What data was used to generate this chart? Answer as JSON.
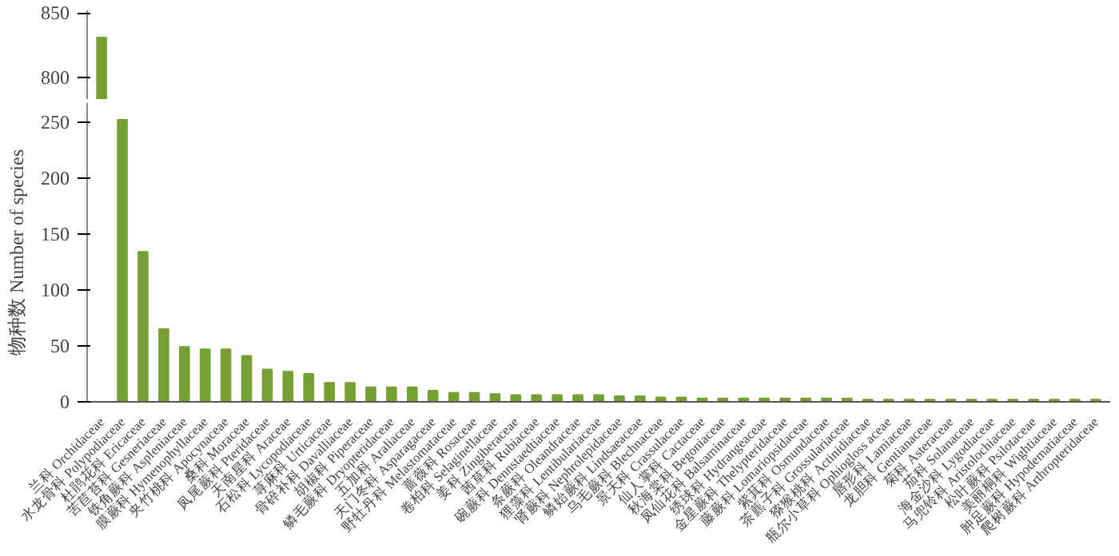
{
  "chart_data": [
    {
      "type": "bar",
      "categories": [
        null
      ],
      "values": [
        831
      ],
      "color": "#76a033",
      "ylim": [
        783,
        852
      ],
      "yticks": [
        800,
        850
      ],
      "tick_labels": "y"
    },
    {
      "type": "bar",
      "ylabel": "物种数 Number of species",
      "categories": [
        "兰科 Orchidaceae",
        "水龙骨科 Polypodiaceae",
        "杜鹃花科 Ericaceae",
        "苦苣苔科 Gesneriaceae",
        "铁角蕨科 Aspleniaceae",
        "膜蕨科 Hymenophyllaceae",
        "夹竹桃科 Apocynaceae",
        "桑科 Moraceae",
        "凤尾蕨科 Pteridaceae",
        "天南星科 Araceae",
        "石松科 Lycopodiaceae",
        "荨麻科 Urticaceae",
        "骨碎补科 Davalliaceae",
        "胡椒科 Piperaceae",
        "鳞毛蕨科 Dryopteridaceae",
        "五加科 Araliaceae",
        "天门冬科 Asparagaceae",
        "野牡丹科 Melastomataceae",
        "蔷薇科 Rosaceae",
        "卷柏科 Selaginellaceae",
        "姜科 Zingiberaceae",
        "茜草科 Rubiaceae",
        "碗蕨科 Dennstaedtiaceae",
        "条蕨科 Oleandraceae",
        "狸藻科 Lentibulariaceae",
        "肾蕨科 Nephrolepidaceae",
        "鳞始蕨科 Lindsaeaceae",
        "乌毛蕨科 Blechnaceae",
        "景天科 Crassulaceae",
        "仙人掌科 Cactaceae",
        "秋海棠科 Begoniaceae",
        "凤仙花科 Balsaminaceae",
        "绣球科 Hydrangeaceae",
        "金星蕨科 Thelypteridaceae",
        "藤蕨科 Lomariopsidaceae",
        "紫萁科 Osmundaceae",
        "茶藨子科 Grossulariaceae",
        "猕猴桃科 Actinidiaceae",
        "瓶尔小草科 Ophiogloss aceae",
        "唇形科 Lamiaceae",
        "龙胆科 Gentianaceae",
        "菊科 Asteraceae",
        "茄科 Solanaceae",
        "海金沙科 Lygodiaceae",
        "马兜铃科 Aristolochiaceae",
        "松叶蕨科 Psilotaceae",
        "美丽桐科 Wightiaceae",
        "肿足蕨科 Hypodematiaceae",
        "爬树蕨科 Arthropteridaceae"
      ],
      "values": [
        null,
        252,
        134,
        65,
        49,
        47,
        47,
        41,
        29,
        27,
        25,
        17,
        17,
        13,
        13,
        13,
        10,
        8,
        8,
        7,
        6,
        6,
        6,
        6,
        6,
        5,
        5,
        4,
        4,
        3,
        3,
        3,
        3,
        3,
        3,
        3,
        3,
        2,
        2,
        2,
        2,
        2,
        2,
        2,
        2,
        2,
        2,
        2,
        2
      ],
      "color": "#76a033",
      "ylim": [
        0,
        267
      ],
      "yticks": [
        0,
        50,
        100,
        150,
        200,
        250
      ]
    }
  ]
}
